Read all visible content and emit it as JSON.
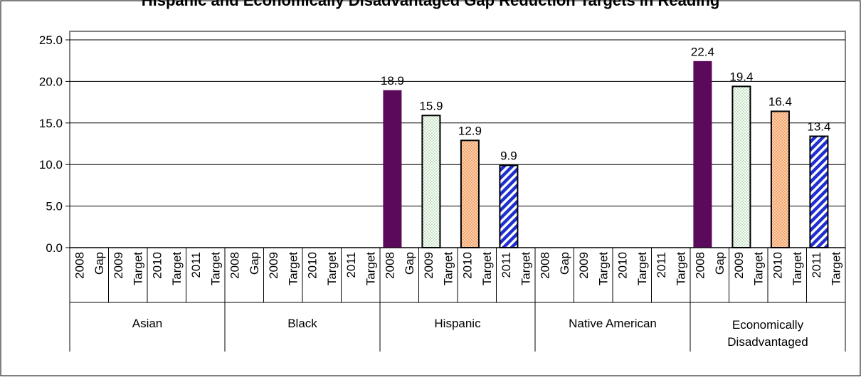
{
  "chart_data": {
    "type": "bar",
    "title": "Hispanic and Economically Disadvantaged Gap Reduction Targets in Reading",
    "xlabel": "",
    "ylabel": "",
    "ylim": [
      0,
      25
    ],
    "y_ticks": [
      "0.0",
      "5.0",
      "10.0",
      "15.0",
      "20.0",
      "25.0"
    ],
    "grid": true,
    "groups": [
      "Asian",
      "Black",
      "Hispanic",
      "Native American",
      "Economically Disadvantaged"
    ],
    "subcategories": [
      {
        "year": "2008",
        "kind": "Gap"
      },
      {
        "year": "2009",
        "kind": "Target"
      },
      {
        "year": "2010",
        "kind": "Target"
      },
      {
        "year": "2011",
        "kind": "Target"
      }
    ],
    "series": [
      {
        "name": "2008 Gap",
        "values": [
          null,
          null,
          18.9,
          null,
          22.4
        ],
        "labels": [
          "",
          "",
          "18.9",
          "",
          "22.4"
        ]
      },
      {
        "name": "2009 Target",
        "values": [
          null,
          null,
          15.9,
          null,
          19.4
        ],
        "labels": [
          "",
          "",
          "15.9",
          "",
          "19.4"
        ]
      },
      {
        "name": "2010 Target",
        "values": [
          null,
          null,
          12.9,
          null,
          16.4
        ],
        "labels": [
          "",
          "",
          "12.9",
          "",
          "16.4"
        ]
      },
      {
        "name": "2011 Target",
        "values": [
          null,
          null,
          9.9,
          null,
          13.4
        ],
        "labels": [
          "",
          "",
          "9.9",
          "",
          "13.4"
        ]
      }
    ],
    "colors": {
      "gap_2008": "#5b0a5b",
      "target_2009": "#7cbf7c",
      "target_2010": "#f4a46e",
      "target_2011": "#1f2fcf",
      "grid": "#000000",
      "plot_border": "#808080"
    }
  }
}
